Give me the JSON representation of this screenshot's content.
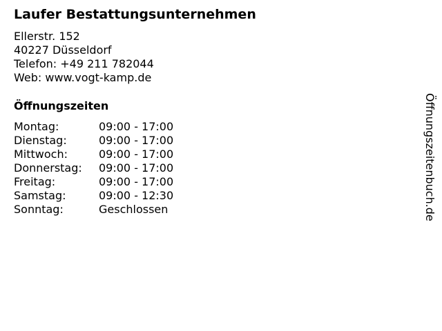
{
  "business": {
    "name": "Laufer Bestattungsunternehmen",
    "street": "Ellerstr. 152",
    "city": "40227 Düsseldorf",
    "phone": "Telefon: +49 211 782044",
    "web": "Web: www.vogt-kamp.de"
  },
  "hours": {
    "heading": "Öffnungszeiten",
    "rows": [
      {
        "day": "Montag:",
        "time": "09:00 - 17:00"
      },
      {
        "day": "Dienstag:",
        "time": "09:00 - 17:00"
      },
      {
        "day": "Mittwoch:",
        "time": "09:00 - 17:00"
      },
      {
        "day": "Donnerstag:",
        "time": "09:00 - 17:00"
      },
      {
        "day": "Freitag:",
        "time": "09:00 - 17:00"
      },
      {
        "day": "Samstag:",
        "time": "09:00 - 12:30"
      },
      {
        "day": "Sonntag:",
        "time": "Geschlossen"
      }
    ]
  },
  "watermark": "Öffnungszeitenbuch.de"
}
